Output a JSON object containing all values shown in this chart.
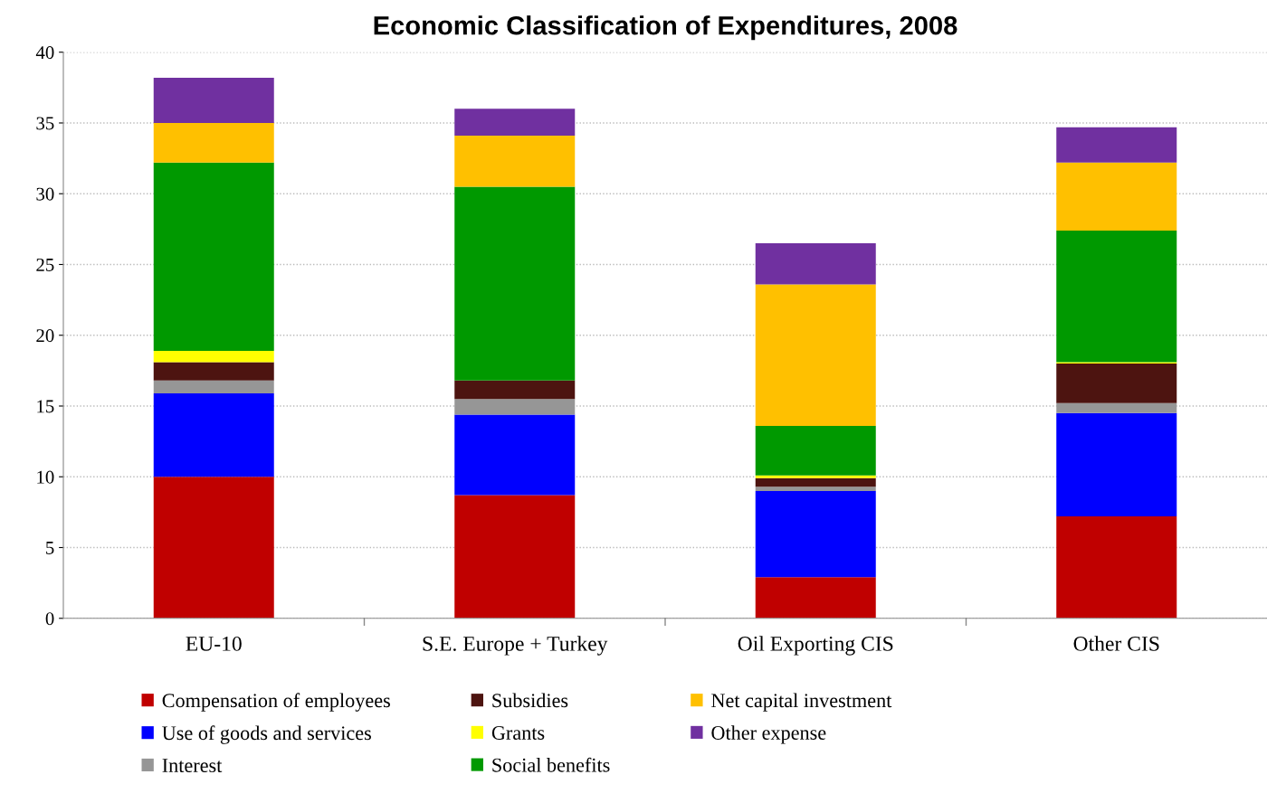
{
  "chart_data": {
    "type": "bar",
    "stacked": true,
    "title": "Economic Classification of Expenditures, 2008",
    "categories": [
      "EU-10",
      "S.E. Europe + Turkey",
      "Oil Exporting CIS",
      "Other CIS"
    ],
    "series": [
      {
        "name": "Compensation of employees",
        "color": "#c00000",
        "values": [
          10.0,
          8.7,
          2.9,
          7.2
        ]
      },
      {
        "name": "Use of goods and services",
        "color": "#0000ff",
        "values": [
          5.9,
          5.7,
          6.1,
          7.3
        ]
      },
      {
        "name": "Interest",
        "color": "#969696",
        "values": [
          0.9,
          1.1,
          0.3,
          0.7
        ]
      },
      {
        "name": "Subsidies",
        "color": "#4d1410",
        "values": [
          1.3,
          1.3,
          0.6,
          2.8
        ]
      },
      {
        "name": "Grants",
        "color": "#ffff00",
        "values": [
          0.8,
          0,
          0.2,
          0.1
        ]
      },
      {
        "name": "Social benefits",
        "color": "#009900",
        "values": [
          13.3,
          13.7,
          3.5,
          9.3
        ]
      },
      {
        "name": "Net capital investment",
        "color": "#ffc000",
        "values": [
          2.8,
          3.6,
          10.0,
          4.8
        ]
      },
      {
        "name": "Other expense",
        "color": "#7030a0",
        "values": [
          3.2,
          1.9,
          2.9,
          2.5
        ]
      }
    ],
    "ylim": [
      0,
      40
    ],
    "yticks": [
      0,
      5,
      10,
      15,
      20,
      25,
      30,
      35,
      40
    ],
    "grid": "y",
    "legend": "bottom"
  }
}
